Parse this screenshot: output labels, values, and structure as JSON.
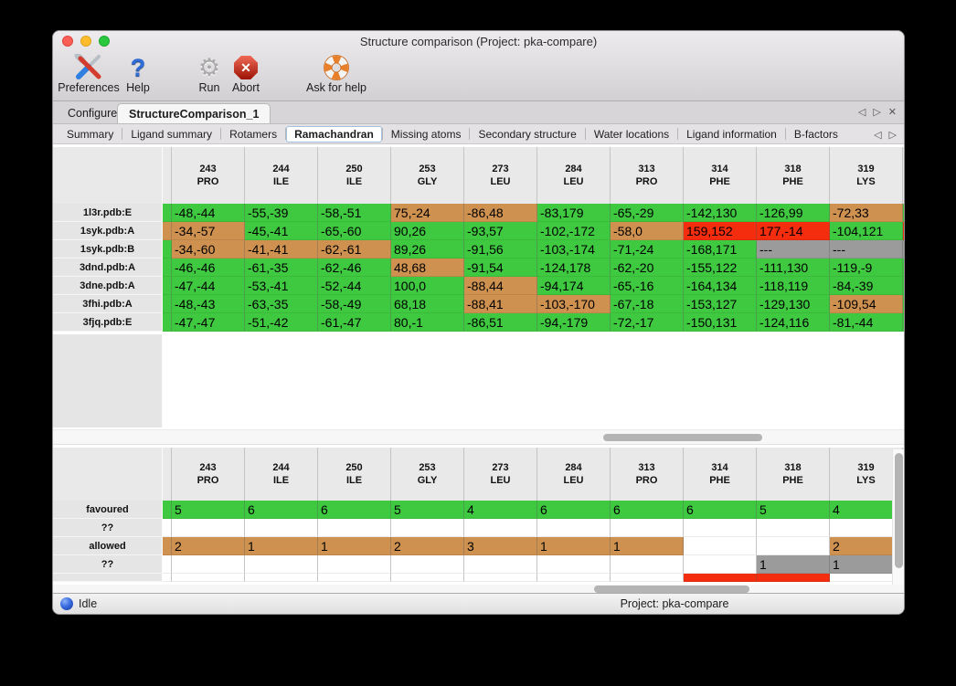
{
  "window": {
    "title": "Structure comparison (Project: pka-compare)"
  },
  "toolbar": {
    "items": [
      {
        "label": "Preferences",
        "icon": "tools-icon"
      },
      {
        "label": "Help",
        "icon": "help-icon",
        "glyph": "?"
      },
      {
        "label": "Run",
        "icon": "gear-icon",
        "glyph": "⚙"
      },
      {
        "label": "Abort",
        "icon": "abort-icon",
        "glyph": "✕"
      },
      {
        "label": "Ask for help",
        "icon": "lifering-icon"
      }
    ]
  },
  "tabs": {
    "items": [
      {
        "label": "Configure",
        "active": false
      },
      {
        "label": "StructureComparison_1",
        "active": true
      }
    ]
  },
  "controls": {
    "prev": "◁",
    "next": "▷",
    "close": "✕"
  },
  "subtabs": {
    "items": [
      "Summary",
      "Ligand summary",
      "Rotamers",
      "Ramachandran",
      "Missing atoms",
      "Secondary structure",
      "Water locations",
      "Ligand information",
      "B-factors"
    ],
    "active": "Ramachandran"
  },
  "colors": {
    "green": "#3fc940",
    "orange": "#ce9150",
    "red": "#f42d0e",
    "gray": "#9b9b9b",
    "white": "#ffffff"
  },
  "columns": [
    {
      "num": "243",
      "res": "PRO"
    },
    {
      "num": "244",
      "res": "ILE"
    },
    {
      "num": "250",
      "res": "ILE"
    },
    {
      "num": "253",
      "res": "GLY"
    },
    {
      "num": "273",
      "res": "LEU"
    },
    {
      "num": "284",
      "res": "LEU"
    },
    {
      "num": "313",
      "res": "PRO"
    },
    {
      "num": "314",
      "res": "PHE"
    },
    {
      "num": "318",
      "res": "PHE"
    },
    {
      "num": "319",
      "res": "LYS"
    }
  ],
  "ramachandran_table": {
    "rows": [
      {
        "label": "1l3r.pdb:E",
        "edge_left": "green",
        "edge_right": "green",
        "cells": [
          [
            "-48,-44",
            "green"
          ],
          [
            "-55,-39",
            "green"
          ],
          [
            "-58,-51",
            "green"
          ],
          [
            "75,-24",
            "orange"
          ],
          [
            "-86,48",
            "orange"
          ],
          [
            "-83,179",
            "green"
          ],
          [
            "-65,-29",
            "green"
          ],
          [
            "-142,130",
            "green"
          ],
          [
            "-126,99",
            "green"
          ],
          [
            "-72,33",
            "orange"
          ]
        ]
      },
      {
        "label": "1syk.pdb:A",
        "edge_left": "orange",
        "edge_right": "red",
        "cells": [
          [
            "-34,-57",
            "orange"
          ],
          [
            "-45,-41",
            "green"
          ],
          [
            "-65,-60",
            "green"
          ],
          [
            "90,26",
            "green"
          ],
          [
            "-93,57",
            "green"
          ],
          [
            "-102,-172",
            "green"
          ],
          [
            "-58,0",
            "orange"
          ],
          [
            "159,152",
            "red"
          ],
          [
            "177,-14",
            "red"
          ],
          [
            "-104,121",
            "green"
          ]
        ]
      },
      {
        "label": "1syk.pdb:B",
        "edge_left": "green",
        "edge_right": "gray",
        "cells": [
          [
            "-34,-60",
            "orange"
          ],
          [
            "-41,-41",
            "orange"
          ],
          [
            "-62,-61",
            "orange"
          ],
          [
            "89,26",
            "green"
          ],
          [
            "-91,56",
            "green"
          ],
          [
            "-103,-174",
            "green"
          ],
          [
            "-71,-24",
            "green"
          ],
          [
            "-168,171",
            "green"
          ],
          [
            "---",
            "gray"
          ],
          [
            "---",
            "gray"
          ]
        ]
      },
      {
        "label": "3dnd.pdb:A",
        "edge_left": "green",
        "edge_right": "green",
        "cells": [
          [
            "-46,-46",
            "green"
          ],
          [
            "-61,-35",
            "green"
          ],
          [
            "-62,-46",
            "green"
          ],
          [
            "48,68",
            "orange"
          ],
          [
            "-91,54",
            "green"
          ],
          [
            "-124,178",
            "green"
          ],
          [
            "-62,-20",
            "green"
          ],
          [
            "-155,122",
            "green"
          ],
          [
            "-111,130",
            "green"
          ],
          [
            "-119,-9",
            "green"
          ]
        ]
      },
      {
        "label": "3dne.pdb:A",
        "edge_left": "green",
        "edge_right": "green",
        "cells": [
          [
            "-47,-44",
            "green"
          ],
          [
            "-53,-41",
            "green"
          ],
          [
            "-52,-44",
            "green"
          ],
          [
            "100,0",
            "green"
          ],
          [
            "-88,44",
            "orange"
          ],
          [
            "-94,174",
            "green"
          ],
          [
            "-65,-16",
            "green"
          ],
          [
            "-164,134",
            "green"
          ],
          [
            "-118,119",
            "green"
          ],
          [
            "-84,-39",
            "green"
          ]
        ]
      },
      {
        "label": "3fhi.pdb:A",
        "edge_left": "green",
        "edge_right": "green",
        "cells": [
          [
            "-48,-43",
            "green"
          ],
          [
            "-63,-35",
            "green"
          ],
          [
            "-58,-49",
            "green"
          ],
          [
            "68,18",
            "green"
          ],
          [
            "-88,41",
            "orange"
          ],
          [
            "-103,-170",
            "orange"
          ],
          [
            "-67,-18",
            "green"
          ],
          [
            "-153,127",
            "green"
          ],
          [
            "-129,130",
            "green"
          ],
          [
            "-109,54",
            "orange"
          ]
        ]
      },
      {
        "label": "3fjq.pdb:E",
        "edge_left": "green",
        "edge_right": "green",
        "cells": [
          [
            "-47,-47",
            "green"
          ],
          [
            "-51,-42",
            "green"
          ],
          [
            "-61,-47",
            "green"
          ],
          [
            "80,-1",
            "green"
          ],
          [
            "-86,51",
            "green"
          ],
          [
            "-94,-179",
            "green"
          ],
          [
            "-72,-17",
            "green"
          ],
          [
            "-150,131",
            "green"
          ],
          [
            "-124,116",
            "green"
          ],
          [
            "-81,-44",
            "green"
          ]
        ]
      }
    ]
  },
  "summary_table": {
    "rows": [
      {
        "label": "favoured",
        "edge_left": "green",
        "edge_right": "green",
        "cells": [
          [
            "5",
            "green"
          ],
          [
            "6",
            "green"
          ],
          [
            "6",
            "green"
          ],
          [
            "5",
            "green"
          ],
          [
            "4",
            "green"
          ],
          [
            "6",
            "green"
          ],
          [
            "6",
            "green"
          ],
          [
            "6",
            "green"
          ],
          [
            "5",
            "green"
          ],
          [
            "4",
            "green"
          ]
        ]
      },
      {
        "label": "??",
        "edge_left": "white",
        "edge_right": "white",
        "cells": [
          [
            "",
            "white"
          ],
          [
            "",
            "white"
          ],
          [
            "",
            "white"
          ],
          [
            "",
            "white"
          ],
          [
            "",
            "white"
          ],
          [
            "",
            "white"
          ],
          [
            "",
            "white"
          ],
          [
            "",
            "white"
          ],
          [
            "",
            "white"
          ],
          [
            "",
            "white"
          ]
        ]
      },
      {
        "label": "allowed",
        "edge_left": "orange",
        "edge_right": "orange",
        "cells": [
          [
            "2",
            "orange"
          ],
          [
            "1",
            "orange"
          ],
          [
            "1",
            "orange"
          ],
          [
            "2",
            "orange"
          ],
          [
            "3",
            "orange"
          ],
          [
            "1",
            "orange"
          ],
          [
            "1",
            "orange"
          ],
          [
            "",
            "white"
          ],
          [
            "",
            "white"
          ],
          [
            "2",
            "orange"
          ]
        ]
      },
      {
        "label": "??",
        "edge_left": "white",
        "edge_right": "gray",
        "cells": [
          [
            "",
            "white"
          ],
          [
            "",
            "white"
          ],
          [
            "",
            "white"
          ],
          [
            "",
            "white"
          ],
          [
            "",
            "white"
          ],
          [
            "",
            "white"
          ],
          [
            "",
            "white"
          ],
          [
            "",
            "white"
          ],
          [
            "1",
            "gray"
          ],
          [
            "1",
            "gray"
          ]
        ]
      }
    ],
    "partial_row": {
      "edge_left": "white",
      "edge_right": "white",
      "cells": [
        "white",
        "white",
        "white",
        "white",
        "white",
        "white",
        "white",
        "red",
        "red",
        "white"
      ]
    }
  },
  "statusbar": {
    "status": "Idle",
    "project": "Project: pka-compare"
  }
}
